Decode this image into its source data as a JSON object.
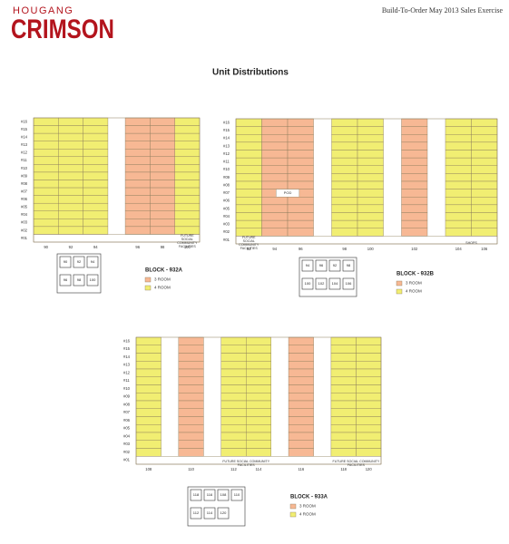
{
  "header": {
    "logo_top": "HOUGANG",
    "logo_main": "CRIMSON",
    "title": "Build-To-Order May 2013 Sales Exercise"
  },
  "page_title": "Unit Distributions",
  "legend": [
    {
      "label": "3 ROOM",
      "color": "#f7b894"
    },
    {
      "label": "4 ROOM",
      "color": "#f1ee72"
    }
  ],
  "blocks": [
    {
      "name": "BLOCK - 932A",
      "floors": [
        "#16",
        "#15",
        "#14",
        "#13",
        "#12",
        "#11",
        "#10",
        "#09",
        "#08",
        "#07",
        "#06",
        "#05",
        "#04",
        "#03",
        "#02",
        "#01"
      ],
      "columns": [
        {
          "unit": "90",
          "room": "4 ROOM"
        },
        {
          "unit": "92",
          "room": "4 ROOM"
        },
        {
          "unit": "94",
          "room": "4 ROOM"
        },
        {
          "unit": null,
          "room": null
        },
        {
          "unit": "96",
          "room": "3 ROOM"
        },
        {
          "unit": "98",
          "room": "3 ROOM"
        },
        {
          "unit": "100",
          "room": "4 ROOM"
        }
      ],
      "ground_notes": [
        {
          "text": "FUTURE SOCIAL COMMUNITY FACILITIES",
          "columns": [
            6,
            6
          ]
        }
      ],
      "notes": [],
      "plan_units": [
        "90",
        "92",
        "94",
        "96",
        "98",
        "100"
      ]
    },
    {
      "name": "BLOCK - 932B",
      "floors": [
        "#16",
        "#15",
        "#14",
        "#13",
        "#12",
        "#11",
        "#10",
        "#09",
        "#08",
        "#07",
        "#06",
        "#05",
        "#04",
        "#03",
        "#02",
        "#01"
      ],
      "columns": [
        {
          "unit": "92",
          "room": "4 ROOM"
        },
        {
          "unit": "94",
          "room": "3 ROOM"
        },
        {
          "unit": "96",
          "room": "3 ROOM"
        },
        {
          "unit": null,
          "room": null
        },
        {
          "unit": "98",
          "room": "4 ROOM"
        },
        {
          "unit": "100",
          "room": "4 ROOM"
        },
        {
          "unit": null,
          "room": null
        },
        {
          "unit": "102",
          "room": "3 ROOM"
        },
        {
          "unit": null,
          "room": null
        },
        {
          "unit": "104",
          "room": "4 ROOM"
        },
        {
          "unit": "106",
          "room": "4 ROOM"
        }
      ],
      "ground_notes": [
        {
          "text": "FUTURE SOCIAL COMMUNITY FACILITIES",
          "columns": [
            0,
            0
          ]
        },
        {
          "text": "SHOPS",
          "columns": [
            9,
            10
          ]
        }
      ],
      "notes": [
        {
          "text": "POD",
          "columns": [
            1,
            2
          ],
          "floor": "#07"
        }
      ],
      "plan_units": [
        "94",
        "96",
        "92",
        "98",
        "100",
        "102",
        "104",
        "106"
      ]
    },
    {
      "name": "BLOCK - 933A",
      "floors": [
        "#16",
        "#15",
        "#14",
        "#13",
        "#12",
        "#11",
        "#10",
        "#09",
        "#08",
        "#07",
        "#06",
        "#05",
        "#04",
        "#03",
        "#02",
        "#01"
      ],
      "columns": [
        {
          "unit": "108",
          "room": "4 ROOM"
        },
        {
          "unit": null,
          "room": null
        },
        {
          "unit": "110",
          "room": "3 ROOM"
        },
        {
          "unit": null,
          "room": null
        },
        {
          "unit": "112",
          "room": "4 ROOM"
        },
        {
          "unit": "114",
          "room": "4 ROOM"
        },
        {
          "unit": null,
          "room": null
        },
        {
          "unit": "116",
          "room": "3 ROOM"
        },
        {
          "unit": null,
          "room": null
        },
        {
          "unit": "118",
          "room": "4 ROOM"
        },
        {
          "unit": "120",
          "room": "4 ROOM"
        }
      ],
      "ground_notes": [
        {
          "text": "FUTURE SOCIAL COMMUNITY FACILITIES",
          "columns": [
            4,
            5
          ]
        },
        {
          "text": "FUTURE SOCIAL COMMUNITY FACILITIES",
          "columns": [
            9,
            10
          ]
        }
      ],
      "notes": [],
      "plan_units": [
        "118",
        "116",
        "108",
        "110",
        "112",
        "114",
        "120"
      ]
    }
  ]
}
